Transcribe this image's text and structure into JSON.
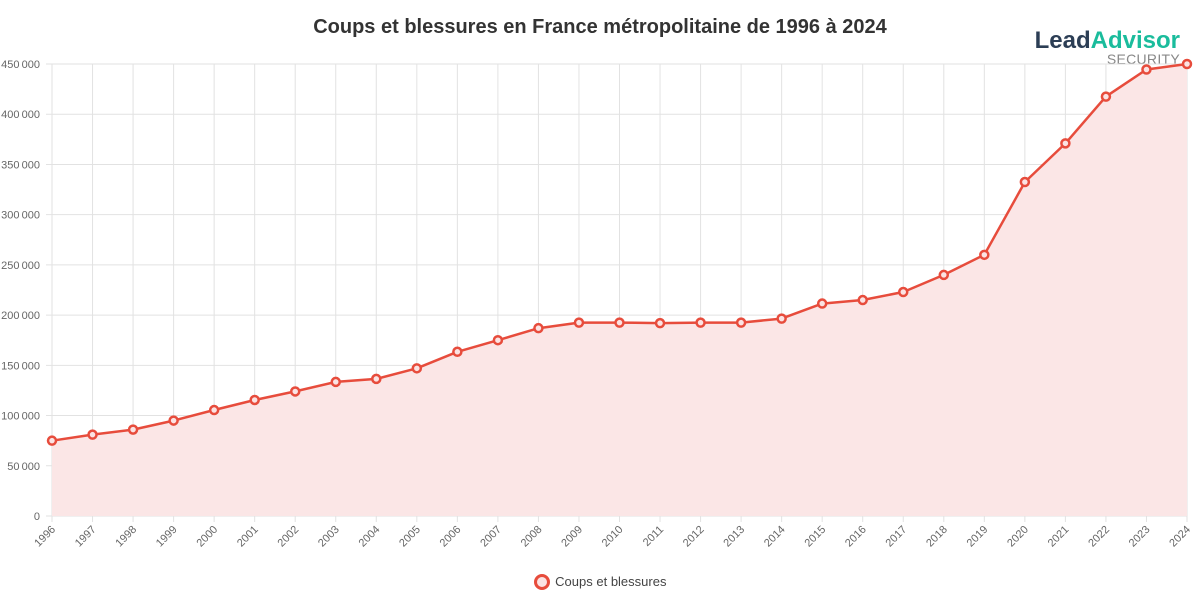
{
  "chart_data": {
    "type": "area",
    "title": "Coups et blessures en France métropolitaine de 1996 à 2024",
    "xlabel": "",
    "ylabel": "",
    "ylim": [
      0,
      450000
    ],
    "yticks": [
      0,
      50000,
      100000,
      150000,
      200000,
      250000,
      300000,
      350000,
      400000,
      450000
    ],
    "grid": true,
    "legend_position": "bottom",
    "categories": [
      "1996",
      "1997",
      "1998",
      "1999",
      "2000",
      "2001",
      "2002",
      "2003",
      "2004",
      "2005",
      "2006",
      "2007",
      "2008",
      "2009",
      "2010",
      "2011",
      "2012",
      "2013",
      "2014",
      "2015",
      "2016",
      "2017",
      "2018",
      "2019",
      "2020",
      "2021",
      "2022",
      "2023",
      "2024"
    ],
    "series": [
      {
        "name": "Coups et blessures",
        "color": "#e74c3c",
        "fill": "#fbe6e6",
        "values": [
          75000,
          81000,
          86000,
          95000,
          105500,
          115500,
          124000,
          133500,
          136500,
          147000,
          163500,
          175000,
          187000,
          192500,
          192500,
          192000,
          192500,
          192500,
          196500,
          211500,
          215000,
          223000,
          240000,
          260000,
          332500,
          371000,
          417500,
          444500,
          450000
        ]
      }
    ]
  },
  "logo": {
    "part1": "Lead",
    "part2": "Advisor",
    "sub": "SECURITY"
  }
}
